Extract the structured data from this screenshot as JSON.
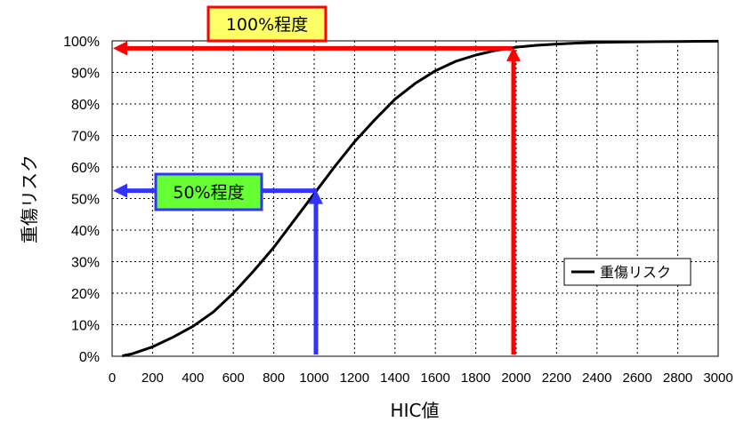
{
  "chart_data": {
    "type": "line",
    "title": "",
    "xlabel": "HIC値",
    "ylabel": "重傷リスク",
    "xlim": [
      0,
      3000
    ],
    "ylim": [
      0,
      100
    ],
    "x_ticks": [
      "0",
      "200",
      "400",
      "600",
      "800",
      "1000",
      "1200",
      "1400",
      "1600",
      "1800",
      "2000",
      "2200",
      "2400",
      "2600",
      "2800",
      "3000"
    ],
    "y_ticks": [
      "0%",
      "10%",
      "20%",
      "30%",
      "40%",
      "50%",
      "60%",
      "70%",
      "80%",
      "90%",
      "100%"
    ],
    "grid": true,
    "legend_position": "right",
    "series": [
      {
        "name": "重傷リスク",
        "color": "#000000",
        "x": [
          50,
          100,
          200,
          300,
          400,
          500,
          600,
          700,
          800,
          900,
          1000,
          1100,
          1200,
          1300,
          1400,
          1500,
          1600,
          1700,
          1800,
          1900,
          2000,
          2100,
          2200,
          2300,
          2400,
          2500,
          2600,
          2700,
          2800,
          2900,
          3000
        ],
        "y": [
          0.1,
          0.8,
          3,
          6,
          9.5,
          14,
          20,
          27,
          34.5,
          43,
          51.5,
          60,
          68,
          75,
          81.5,
          86.5,
          90.5,
          93.5,
          95.5,
          97,
          98,
          98.6,
          99,
          99.3,
          99.5,
          99.6,
          99.7,
          99.75,
          99.8,
          99.85,
          99.9
        ]
      }
    ],
    "annotations": [
      {
        "name": "50pct",
        "label": "50%程度",
        "x": 1000,
        "y": 52.5,
        "color": "#3333ff",
        "fill": "#66ff33",
        "border": "#3333ff"
      },
      {
        "name": "100pct",
        "label": "100%程度",
        "x": 2000,
        "y": 97.5,
        "color": "#ff0000",
        "fill": "#ffff66",
        "border": "#ff0000"
      }
    ]
  }
}
